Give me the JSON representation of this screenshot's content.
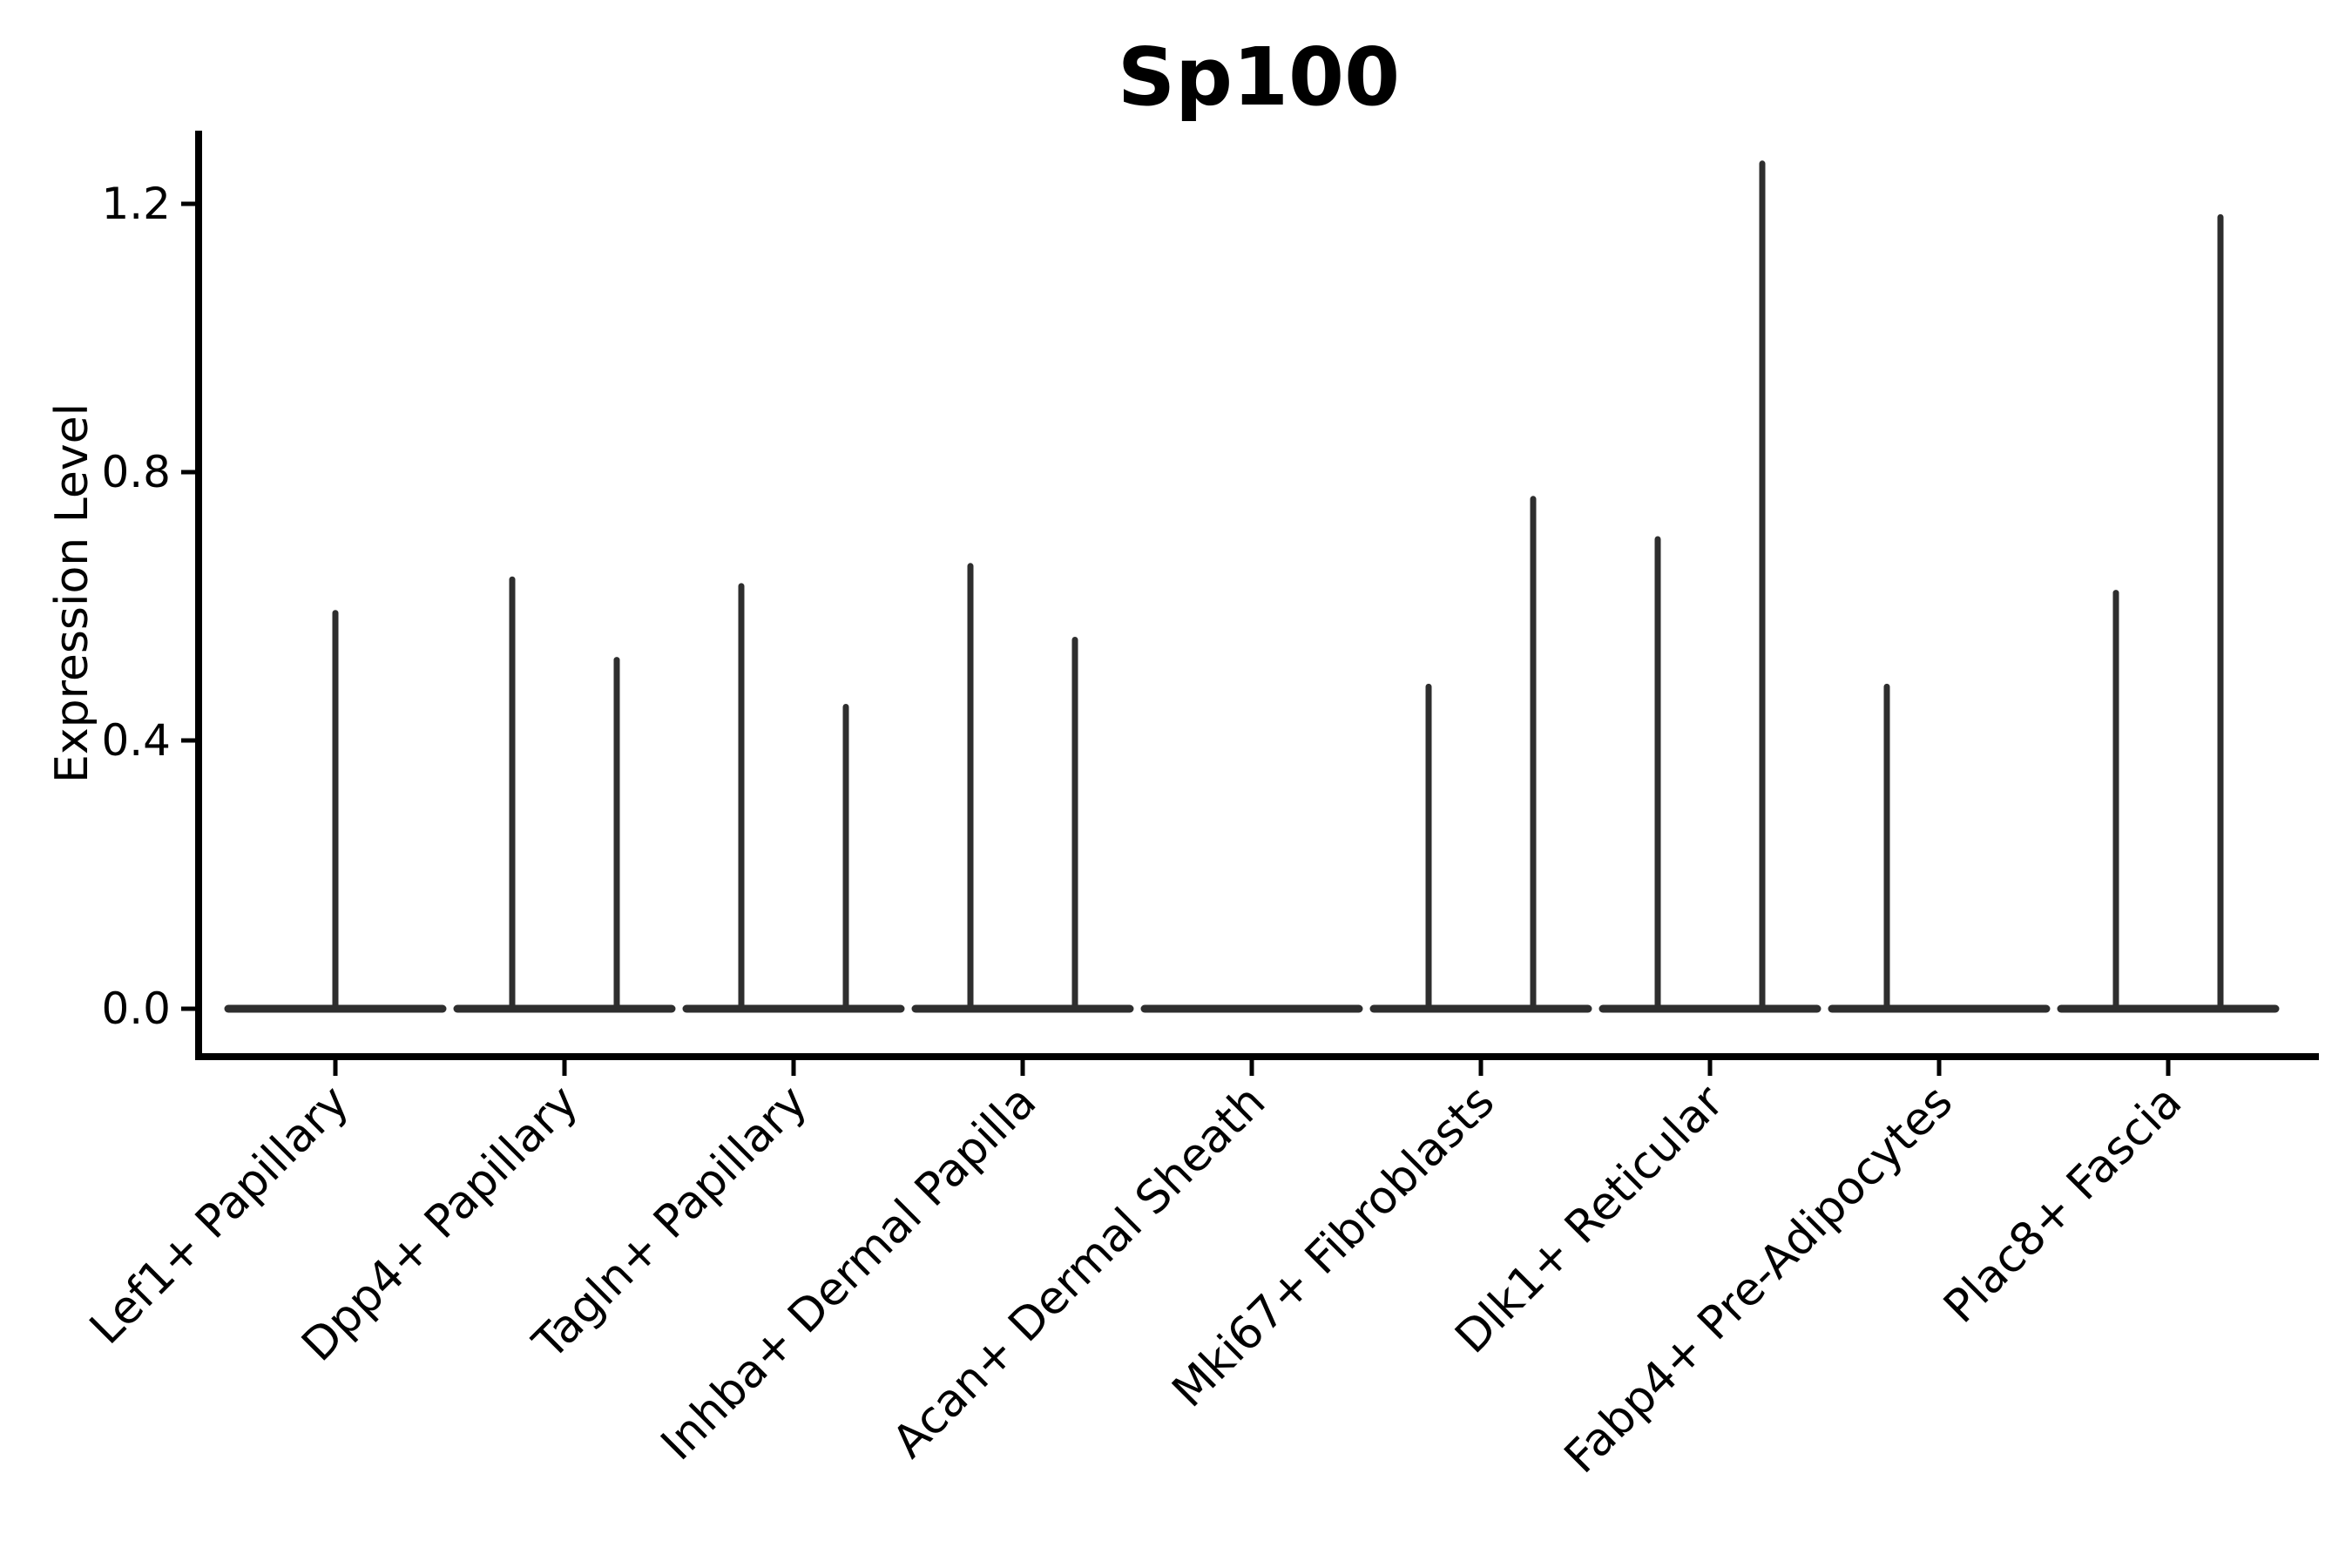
{
  "title": "Sp100",
  "axes": {
    "ylabel": "Expression Level",
    "xlabel": "",
    "ytick_labels": [
      "0.0",
      "0.4",
      "0.8",
      "1.2"
    ]
  },
  "colors": {
    "violin": "#2e2e2e",
    "axis": "#000000",
    "text": "#000000",
    "background": "#ffffff"
  },
  "chart_data": {
    "type": "violin",
    "title": "Sp100",
    "ylabel": "Expression Level",
    "xlabel": "",
    "grid": false,
    "legend": false,
    "ylim": [
      -0.07,
      1.31
    ],
    "yticks": [
      0.0,
      0.4,
      0.8,
      1.2
    ],
    "baseline_value": 0.0,
    "note": "Sparse expression violin plot: each violin collapses to a flat line at 0 with a thin spike up to the maximum expression value. Categories with two spikes contain two side-by-side violins (left/right); 'center' means a single full-width violin; empty list means expression is all zero.",
    "categories": [
      {
        "label": "Lef1+ Papillary",
        "violins": [
          {
            "position": "center",
            "max": 0.59
          }
        ]
      },
      {
        "label": "Dpp4+ Papillary",
        "violins": [
          {
            "position": "left",
            "max": 0.64
          },
          {
            "position": "right",
            "max": 0.52
          }
        ]
      },
      {
        "label": "Tagln+ Papillary",
        "violins": [
          {
            "position": "left",
            "max": 0.63
          },
          {
            "position": "right",
            "max": 0.45
          }
        ]
      },
      {
        "label": "Inhba+ Dermal Papilla",
        "violins": [
          {
            "position": "left",
            "max": 0.66
          },
          {
            "position": "right",
            "max": 0.55
          }
        ]
      },
      {
        "label": "Acan+ Dermal Sheath",
        "violins": []
      },
      {
        "label": "Mki67+ Fibroblasts",
        "violins": [
          {
            "position": "left",
            "max": 0.48
          },
          {
            "position": "right",
            "max": 0.76
          }
        ]
      },
      {
        "label": "Dlk1+ Reticular",
        "violins": [
          {
            "position": "left",
            "max": 0.7
          },
          {
            "position": "right",
            "max": 1.26
          }
        ]
      },
      {
        "label": "Fabp4+ Pre-Adipocytes",
        "violins": [
          {
            "position": "left",
            "max": 0.48
          }
        ]
      },
      {
        "label": "Plac8+ Fascia",
        "violins": [
          {
            "position": "left",
            "max": 0.62
          },
          {
            "position": "right",
            "max": 1.18
          }
        ]
      }
    ]
  }
}
